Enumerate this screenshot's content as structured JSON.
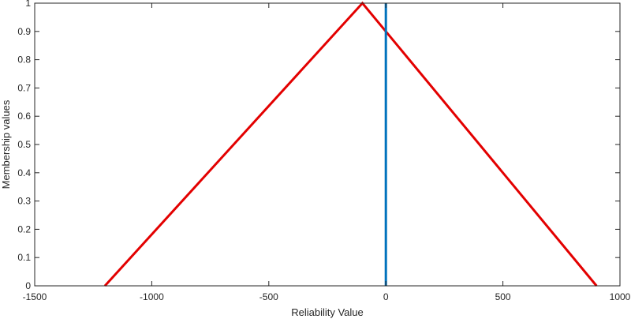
{
  "chart_data": {
    "type": "line",
    "title": "",
    "xlabel": "Reliability Value",
    "ylabel": "Membership values",
    "xlim": [
      -1500,
      1000
    ],
    "ylim": [
      0,
      1
    ],
    "xticks": [
      -1500,
      -1000,
      -500,
      0,
      500,
      1000
    ],
    "yticks": [
      0,
      0.1,
      0.2,
      0.3,
      0.4,
      0.5,
      0.6,
      0.7,
      0.8,
      0.9,
      1
    ],
    "grid": false,
    "box": true,
    "series": [
      {
        "color": "#e30000",
        "x": [
          -1200,
          -100,
          900
        ],
        "y": [
          0,
          1,
          0
        ]
      },
      {
        "color": "#0072bd",
        "x": [
          0,
          0
        ],
        "y": [
          0,
          1
        ]
      }
    ]
  }
}
